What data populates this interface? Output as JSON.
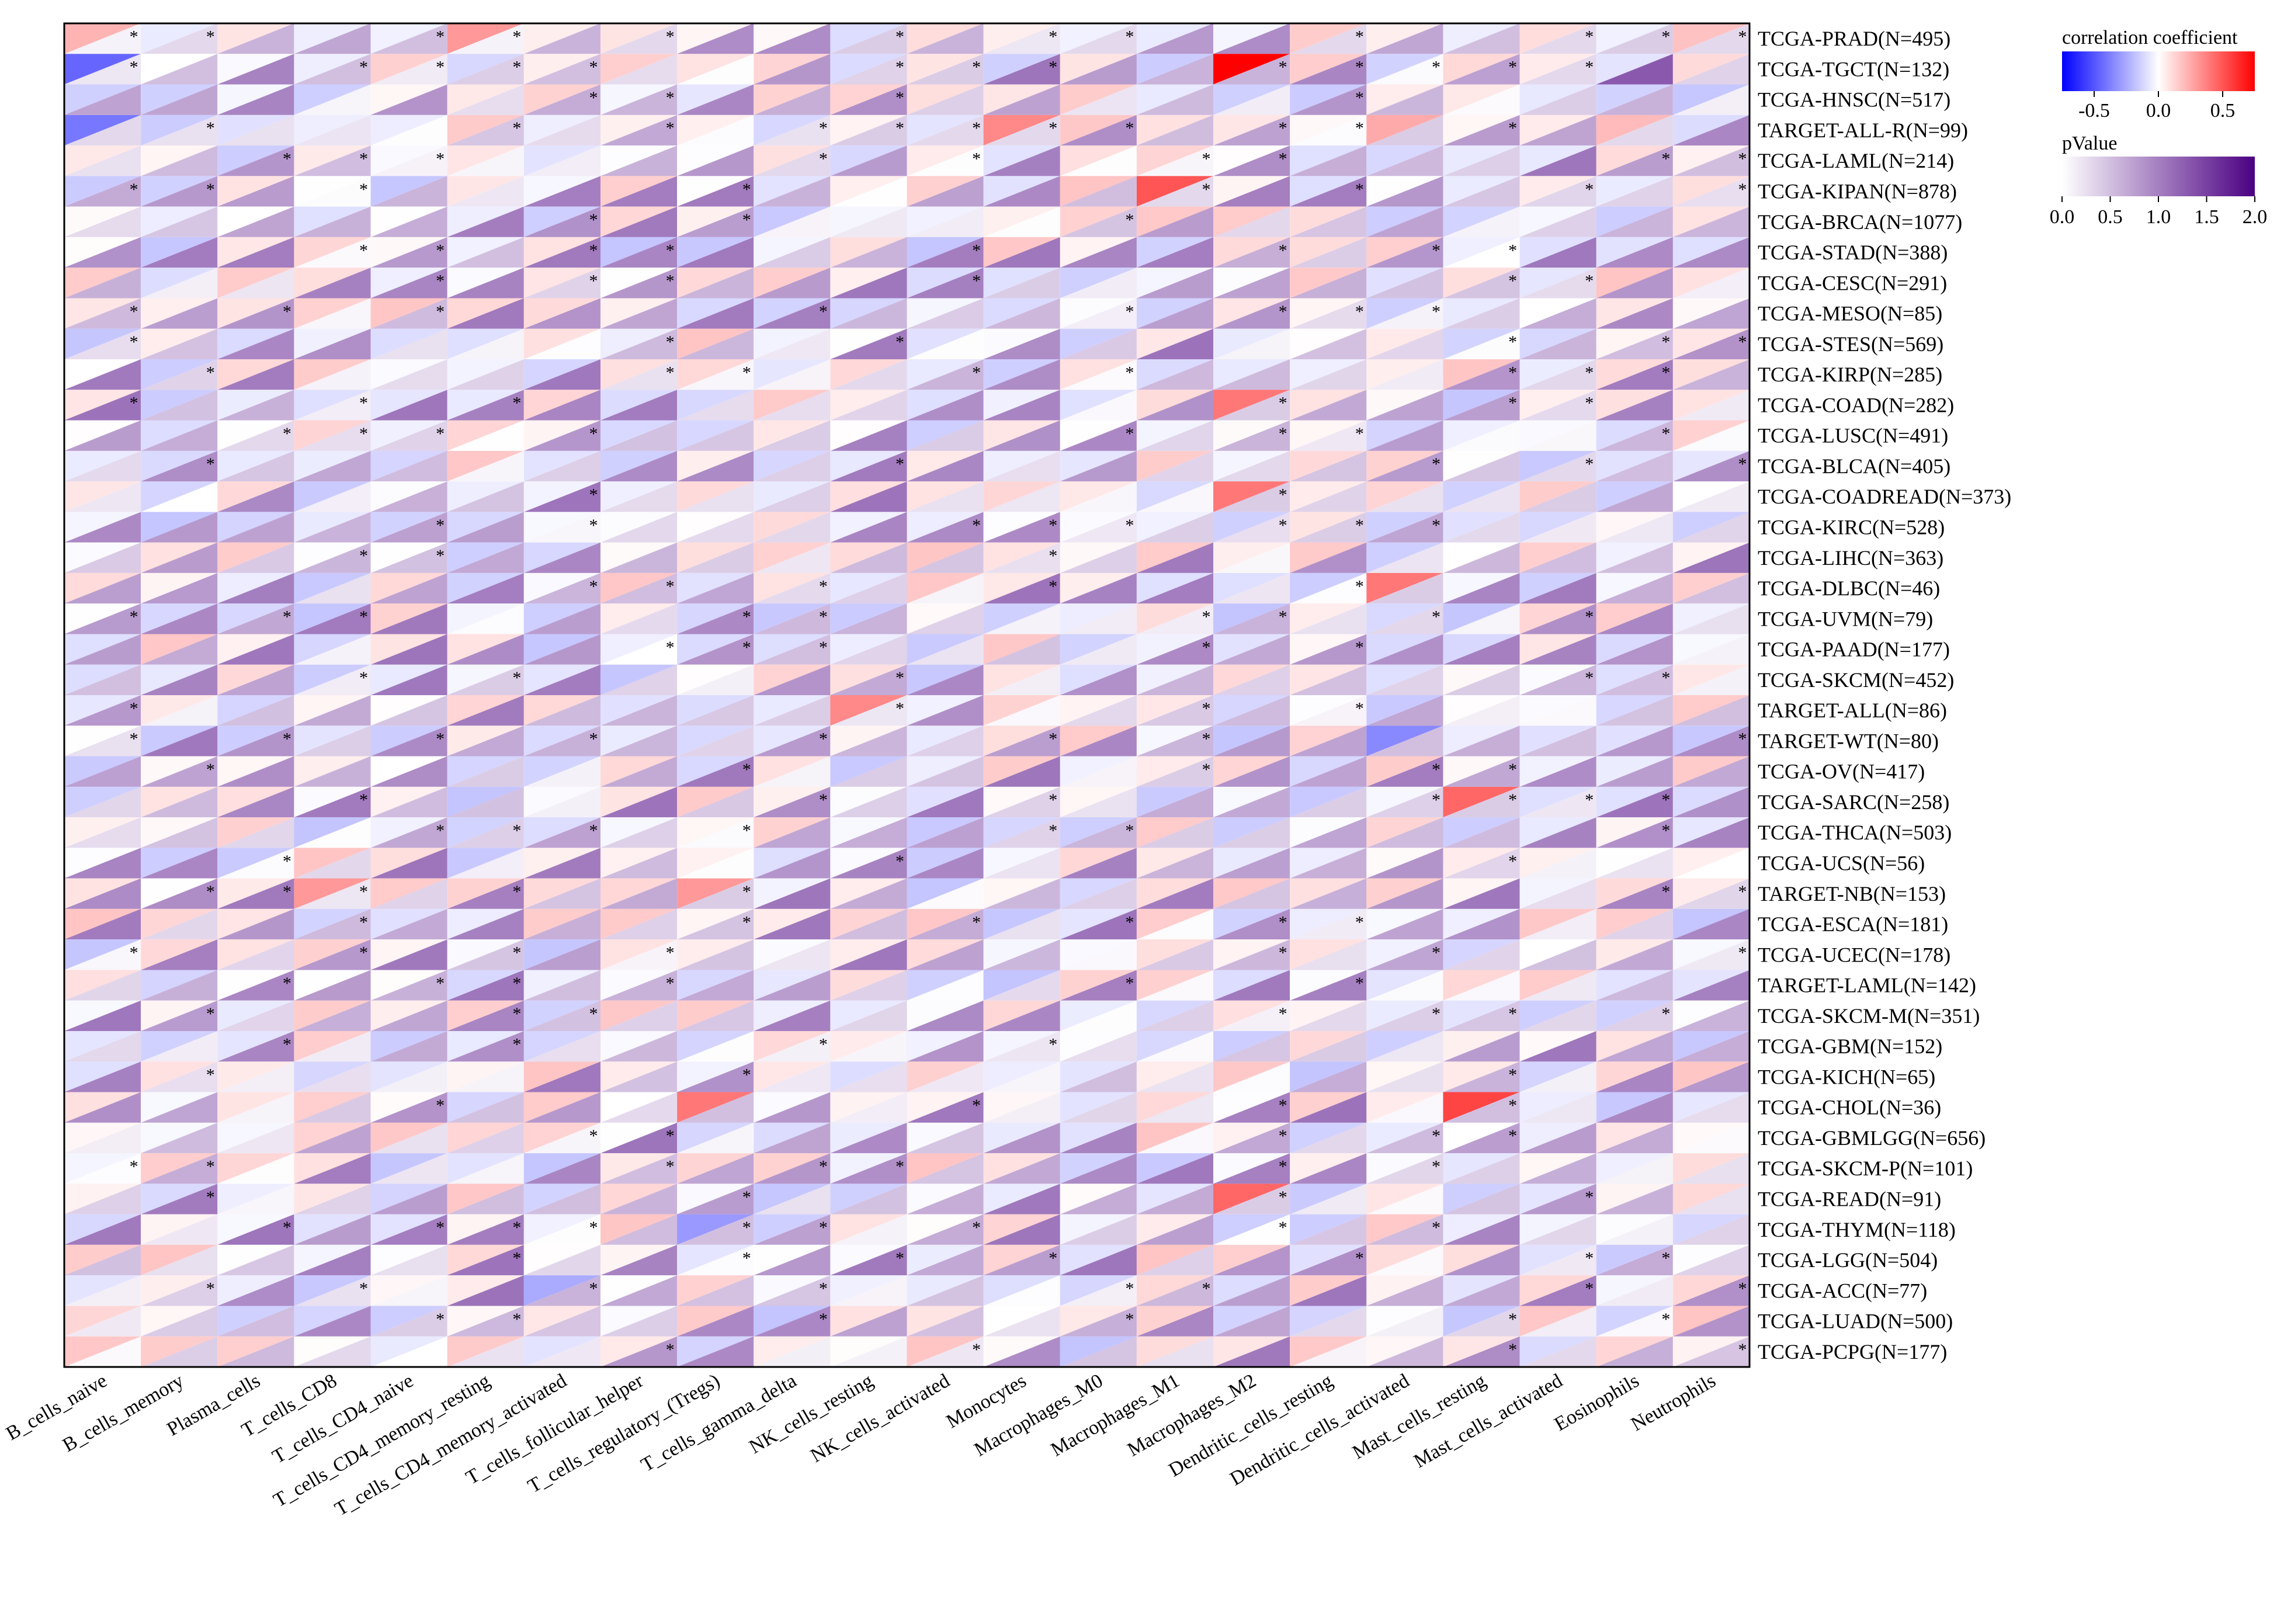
{
  "chart_data": {
    "type": "heatmap",
    "title": "",
    "description_of_encoding": "Each cell split diagonally: upper-left triangle colored by correlation coefficient (blue-white-red), lower-right triangle colored by pValue (white-purple). Asterisk marks significance.",
    "x_categories": [
      "B_cells_naive",
      "B_cells_memory",
      "Plasma_cells",
      "T_cells_CD8",
      "T_cells_CD4_naive",
      "T_cells_CD4_memory_resting",
      "T_cells_CD4_memory_activated",
      "T_cells_follicular_helper",
      "T_cells_regulatory_(Tregs)",
      "T_cells_gamma_delta",
      "NK_cells_resting",
      "NK_cells_activated",
      "Monocytes",
      "Macrophages_M0",
      "Macrophages_M1",
      "Macrophages_M2",
      "Dendritic_cells_resting",
      "Dendritic_cells_activated",
      "Mast_cells_resting",
      "Mast_cells_activated",
      "Eosinophils",
      "Neutrophils"
    ],
    "y_categories": [
      "TCGA-PRAD(N=495)",
      "TCGA-TGCT(N=132)",
      "TCGA-HNSC(N=517)",
      "TARGET-ALL-R(N=99)",
      "TCGA-LAML(N=214)",
      "TCGA-KIPAN(N=878)",
      "TCGA-BRCA(N=1077)",
      "TCGA-STAD(N=388)",
      "TCGA-CESC(N=291)",
      "TCGA-MESO(N=85)",
      "TCGA-STES(N=569)",
      "TCGA-KIRP(N=285)",
      "TCGA-COAD(N=282)",
      "TCGA-LUSC(N=491)",
      "TCGA-BLCA(N=405)",
      "TCGA-COADREAD(N=373)",
      "TCGA-KIRC(N=528)",
      "TCGA-LIHC(N=363)",
      "TCGA-DLBC(N=46)",
      "TCGA-UVM(N=79)",
      "TCGA-PAAD(N=177)",
      "TCGA-SKCM(N=452)",
      "TARGET-ALL(N=86)",
      "TARGET-WT(N=80)",
      "TCGA-OV(N=417)",
      "TCGA-SARC(N=258)",
      "TCGA-THCA(N=503)",
      "TCGA-UCS(N=56)",
      "TARGET-NB(N=153)",
      "TCGA-ESCA(N=181)",
      "TCGA-UCEC(N=178)",
      "TARGET-LAML(N=142)",
      "TCGA-SKCM-M(N=351)",
      "TCGA-GBM(N=152)",
      "TCGA-KICH(N=65)",
      "TCGA-CHOL(N=36)",
      "TCGA-GBMLGG(N=656)",
      "TCGA-SKCM-P(N=101)",
      "TCGA-READ(N=91)",
      "TCGA-THYM(N=118)",
      "TCGA-LGG(N=504)",
      "TCGA-ACC(N=77)",
      "TCGA-LUAD(N=500)",
      "TCGA-PCPG(N=177)"
    ],
    "correlation_legend": {
      "title": "correlation coefficient",
      "range": [
        -0.75,
        0.75
      ],
      "ticks": [
        "-0.5",
        "0.0",
        "0.5"
      ],
      "tick_values": [
        -0.5,
        0.0,
        0.5
      ],
      "colors": [
        "#0000ff",
        "#ffffff",
        "#ff0000"
      ]
    },
    "pvalue_legend": {
      "title": "pValue",
      "range": [
        0.0,
        2.0
      ],
      "ticks": [
        "0.0",
        "0.5",
        "1.0",
        "1.5",
        "2.0"
      ],
      "tick_values": [
        0.0,
        0.5,
        1.0,
        1.5,
        2.0
      ],
      "colors": [
        "#ffffff",
        "#4b0082"
      ]
    },
    "significance_marker": "*",
    "cells": [
      {
        "row": 0,
        "col": 0,
        "r": 0.22,
        "p": 0.1,
        "sig": true
      },
      {
        "row": 0,
        "col": 1,
        "r": -0.06,
        "p": 0.3,
        "sig": true
      },
      {
        "row": 0,
        "col": 2,
        "r": 0.08,
        "p": 0.6,
        "sig": false
      },
      {
        "row": 0,
        "col": 3,
        "r": -0.05,
        "p": 0.7,
        "sig": false
      },
      {
        "row": 0,
        "col": 4,
        "r": -0.04,
        "p": 0.5,
        "sig": true
      },
      {
        "row": 0,
        "col": 5,
        "r": 0.3,
        "p": 0.1,
        "sig": true
      },
      {
        "row": 0,
        "col": 6,
        "r": 0.05,
        "p": 0.6,
        "sig": false
      },
      {
        "row": 0,
        "col": 7,
        "r": 0.08,
        "p": 0.3,
        "sig": true
      },
      {
        "row": 0,
        "col": 8,
        "r": 0.03,
        "p": 0.9,
        "sig": false
      },
      {
        "row": 0,
        "col": 9,
        "r": 0.02,
        "p": 0.9,
        "sig": false
      },
      {
        "row": 0,
        "col": 10,
        "r": -0.1,
        "p": 0.4,
        "sig": true
      },
      {
        "row": 0,
        "col": 11,
        "r": 0.1,
        "p": 0.6,
        "sig": false
      },
      {
        "row": 0,
        "col": 12,
        "r": 0.05,
        "p": 0.2,
        "sig": true
      },
      {
        "row": 0,
        "col": 13,
        "r": -0.04,
        "p": 0.3,
        "sig": true
      },
      {
        "row": 0,
        "col": 14,
        "r": -0.06,
        "p": 0.8,
        "sig": false
      },
      {
        "row": 0,
        "col": 15,
        "r": -0.03,
        "p": 0.9,
        "sig": false
      },
      {
        "row": 0,
        "col": 16,
        "r": 0.15,
        "p": 0.3,
        "sig": true
      },
      {
        "row": 0,
        "col": 17,
        "r": 0.05,
        "p": 0.7,
        "sig": false
      },
      {
        "row": 0,
        "col": 18,
        "r": -0.05,
        "p": 0.5,
        "sig": false
      },
      {
        "row": 0,
        "col": 19,
        "r": 0.1,
        "p": 0.3,
        "sig": true
      },
      {
        "row": 0,
        "col": 20,
        "r": -0.04,
        "p": 0.4,
        "sig": true
      },
      {
        "row": 0,
        "col": 21,
        "r": 0.18,
        "p": 0.3,
        "sig": true
      },
      {
        "row": 1,
        "col": 0,
        "r": -0.45,
        "p": 0.2,
        "sig": true
      },
      {
        "row": 1,
        "col": 15,
        "r": 0.95,
        "p": 0.6,
        "sig": true
      },
      {
        "row": 1,
        "col": 1,
        "r": 0.0,
        "p": 0.5,
        "sig": false
      },
      {
        "row": 1,
        "col": 3,
        "r": -0.05,
        "p": 0.5,
        "sig": true
      },
      {
        "row": 1,
        "col": 6,
        "r": 0.05,
        "p": 0.5,
        "sig": true
      },
      {
        "row": 1,
        "col": 11,
        "r": 0.08,
        "p": 0.4,
        "sig": true
      },
      {
        "row": 1,
        "col": 14,
        "r": -0.15,
        "p": 0.6,
        "sig": false
      },
      {
        "row": 1,
        "col": 19,
        "r": 0.06,
        "p": 0.3,
        "sig": true
      },
      {
        "row": 1,
        "col": 20,
        "r": -0.08,
        "p": 1.3,
        "sig": false
      },
      {
        "row": 3,
        "col": 0,
        "r": -0.4,
        "p": 0.3,
        "sig": false
      },
      {
        "row": 3,
        "col": 12,
        "r": 0.35,
        "p": 0.3,
        "sig": true
      },
      {
        "row": 3,
        "col": 17,
        "r": 0.25,
        "p": 0.4,
        "sig": false
      },
      {
        "row": 3,
        "col": 20,
        "r": 0.2,
        "p": 0.3,
        "sig": false
      },
      {
        "row": 5,
        "col": 14,
        "r": 0.5,
        "p": 0.3,
        "sig": true
      },
      {
        "row": 12,
        "col": 15,
        "r": 0.4,
        "p": 0.4,
        "sig": true
      },
      {
        "row": 15,
        "col": 15,
        "r": 0.4,
        "p": 0.4,
        "sig": true
      },
      {
        "row": 18,
        "col": 17,
        "r": 0.4,
        "p": 0.4,
        "sig": false
      },
      {
        "row": 22,
        "col": 10,
        "r": 0.35,
        "p": 0.2,
        "sig": true
      },
      {
        "row": 23,
        "col": 17,
        "r": -0.35,
        "p": 0.5,
        "sig": false
      },
      {
        "row": 25,
        "col": 18,
        "r": 0.45,
        "p": 0.4,
        "sig": true
      },
      {
        "row": 28,
        "col": 3,
        "r": 0.3,
        "p": 0.2,
        "sig": true
      },
      {
        "row": 28,
        "col": 8,
        "r": 0.3,
        "p": 0.4,
        "sig": true
      },
      {
        "row": 35,
        "col": 8,
        "r": 0.4,
        "p": 0.5,
        "sig": false
      },
      {
        "row": 35,
        "col": 18,
        "r": 0.55,
        "p": 0.5,
        "sig": true
      },
      {
        "row": 38,
        "col": 15,
        "r": 0.45,
        "p": 0.4,
        "sig": true
      },
      {
        "row": 39,
        "col": 8,
        "r": -0.3,
        "p": 0.5,
        "sig": true
      },
      {
        "row": 41,
        "col": 6,
        "r": -0.25,
        "p": 0.6,
        "sig": true
      }
    ]
  }
}
